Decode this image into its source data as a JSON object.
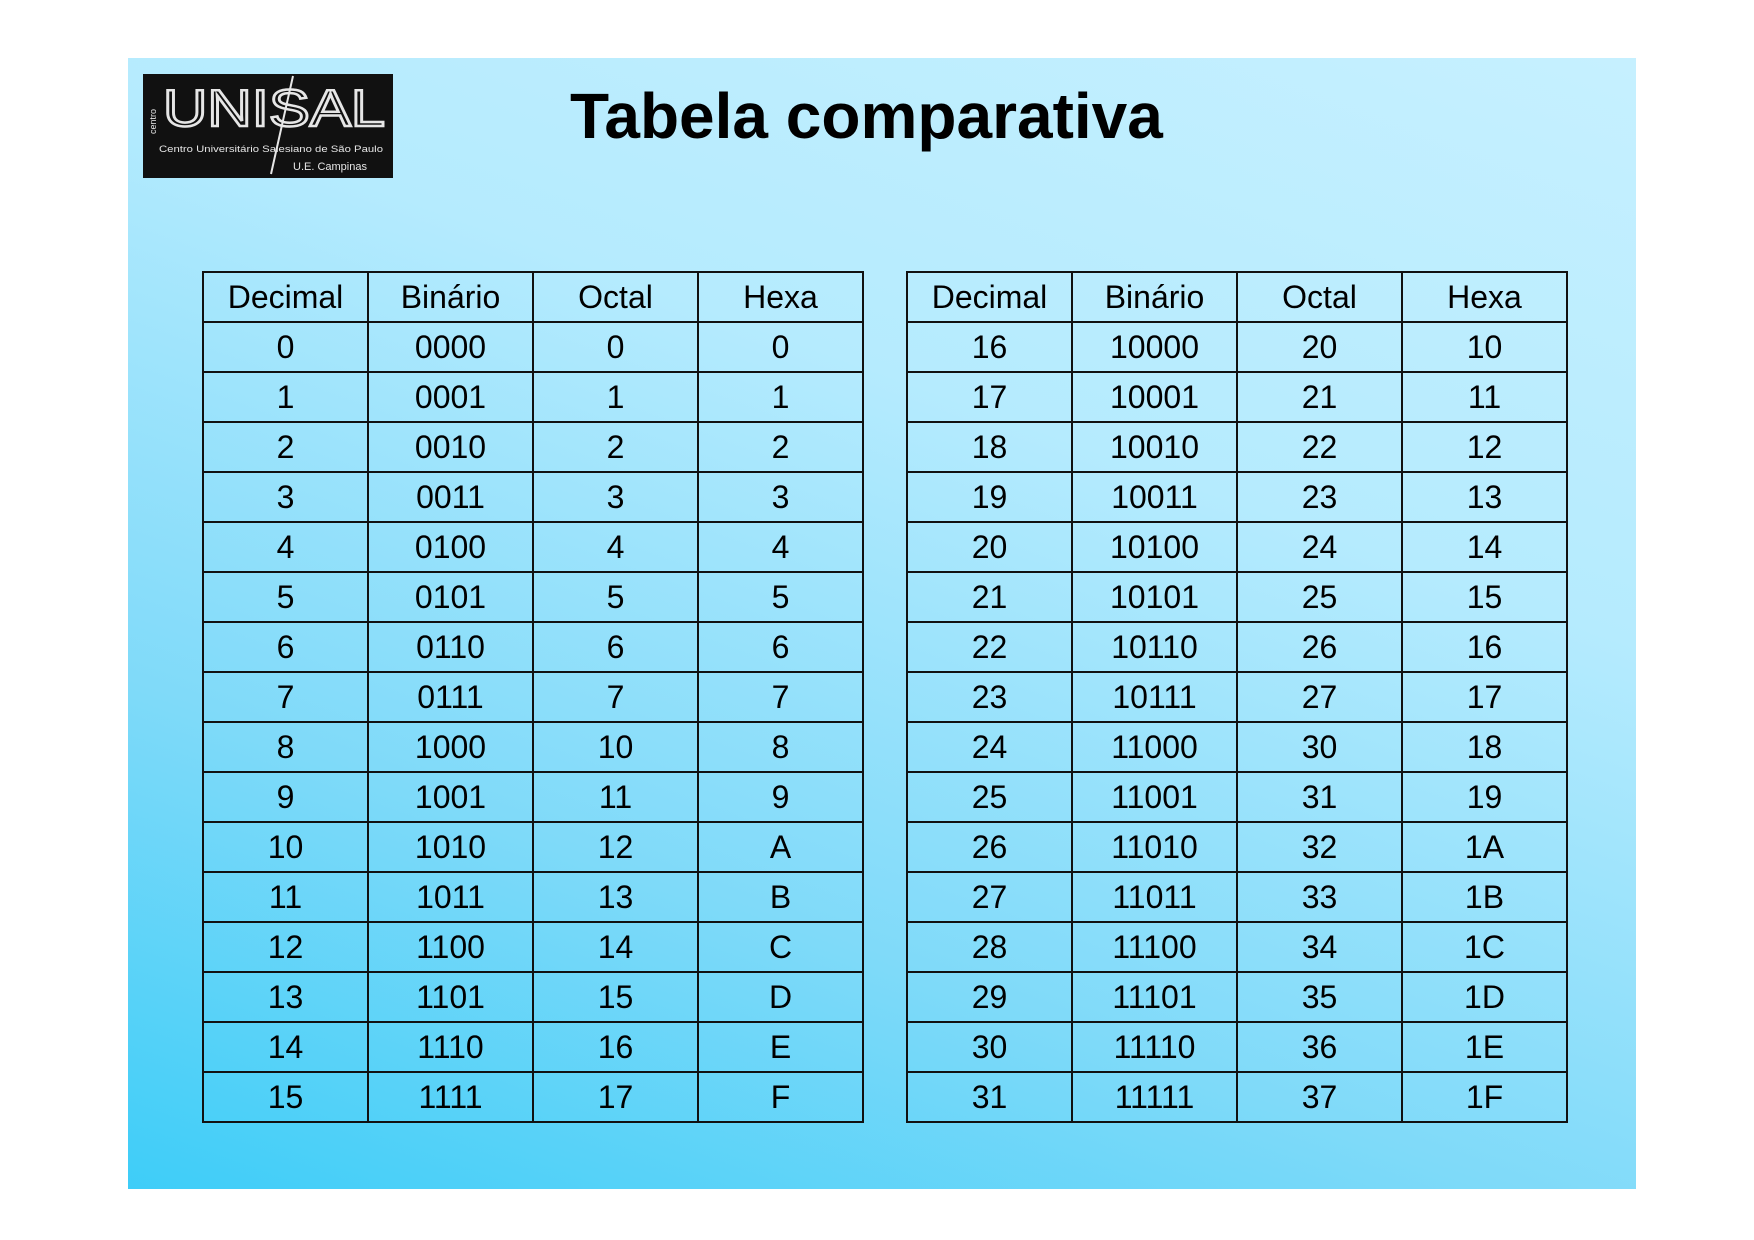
{
  "slide": {
    "title": "Tabela comparativa",
    "logo": {
      "name": "UNISAL",
      "subtitle": "Centro Universitário Salesiano de São Paulo",
      "campus": "U.E. Campinas",
      "side_text": "centro"
    }
  },
  "colors": {
    "background_light": "#c6f0ff",
    "background_dark": "#3ecdf8",
    "logo_bg": "#111111",
    "text": "#000000"
  },
  "tables": [
    {
      "headers": [
        "Decimal",
        "Binário",
        "Octal",
        "Hexa"
      ],
      "rows": [
        [
          "0",
          "0000",
          "0",
          "0"
        ],
        [
          "1",
          "0001",
          "1",
          "1"
        ],
        [
          "2",
          "0010",
          "2",
          "2"
        ],
        [
          "3",
          "0011",
          "3",
          "3"
        ],
        [
          "4",
          "0100",
          "4",
          "4"
        ],
        [
          "5",
          "0101",
          "5",
          "5"
        ],
        [
          "6",
          "0110",
          "6",
          "6"
        ],
        [
          "7",
          "0111",
          "7",
          "7"
        ],
        [
          "8",
          "1000",
          "10",
          "8"
        ],
        [
          "9",
          "1001",
          "11",
          "9"
        ],
        [
          "10",
          "1010",
          "12",
          "A"
        ],
        [
          "11",
          "1011",
          "13",
          "B"
        ],
        [
          "12",
          "1100",
          "14",
          "C"
        ],
        [
          "13",
          "1101",
          "15",
          "D"
        ],
        [
          "14",
          "1110",
          "16",
          "E"
        ],
        [
          "15",
          "1111",
          "17",
          "F"
        ]
      ]
    },
    {
      "headers": [
        "Decimal",
        "Binário",
        "Octal",
        "Hexa"
      ],
      "rows": [
        [
          "16",
          "10000",
          "20",
          "10"
        ],
        [
          "17",
          "10001",
          "21",
          "11"
        ],
        [
          "18",
          "10010",
          "22",
          "12"
        ],
        [
          "19",
          "10011",
          "23",
          "13"
        ],
        [
          "20",
          "10100",
          "24",
          "14"
        ],
        [
          "21",
          "10101",
          "25",
          "15"
        ],
        [
          "22",
          "10110",
          "26",
          "16"
        ],
        [
          "23",
          "10111",
          "27",
          "17"
        ],
        [
          "24",
          "11000",
          "30",
          "18"
        ],
        [
          "25",
          "11001",
          "31",
          "19"
        ],
        [
          "26",
          "11010",
          "32",
          "1A"
        ],
        [
          "27",
          "11011",
          "33",
          "1B"
        ],
        [
          "28",
          "11100",
          "34",
          "1C"
        ],
        [
          "29",
          "11101",
          "35",
          "1D"
        ],
        [
          "30",
          "11110",
          "36",
          "1E"
        ],
        [
          "31",
          "11111",
          "37",
          "1F"
        ]
      ]
    }
  ]
}
